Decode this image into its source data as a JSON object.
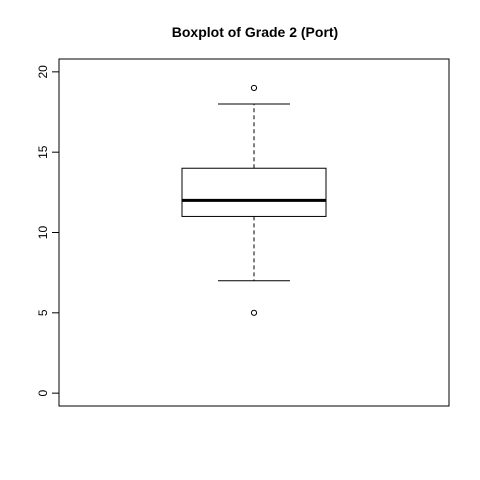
{
  "chart_data": {
    "type": "boxplot",
    "title": "Boxplot of Grade 2 (Port)",
    "xlabel": "",
    "ylabel": "",
    "ylim": [
      -0.8,
      20.8
    ],
    "yticks": [
      0,
      5,
      10,
      15,
      20
    ],
    "grid": false,
    "box": {
      "min": 7,
      "q1": 11,
      "median": 12,
      "q3": 14,
      "max": 18,
      "outliers": [
        5,
        19
      ]
    },
    "colors": {
      "stroke": "#000000",
      "background": "#ffffff"
    }
  }
}
